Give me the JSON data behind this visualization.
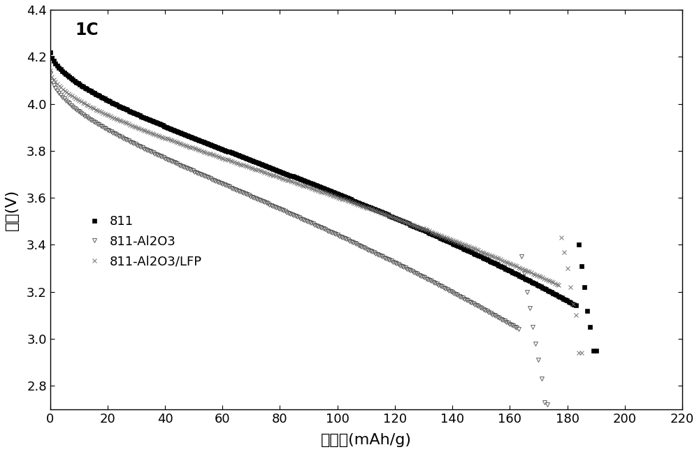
{
  "title_annotation": "1C",
  "xlabel": "比容量(mAh/g)",
  "ylabel": "电压(V)",
  "xlim": [
    0,
    220
  ],
  "ylim": [
    2.7,
    4.4
  ],
  "xticks": [
    0,
    20,
    40,
    60,
    80,
    100,
    120,
    140,
    160,
    180,
    200,
    220
  ],
  "yticks": [
    2.8,
    3.0,
    3.2,
    3.4,
    3.6,
    3.8,
    4.0,
    4.2,
    4.4
  ],
  "legend_labels": [
    "811",
    "811-Al2O3",
    "811-Al2O3/LFP"
  ],
  "series_colors": [
    "black",
    "#606060",
    "#707070"
  ],
  "series_markers": [
    "s",
    "v",
    "x"
  ],
  "series_markerfacecolors": [
    "black",
    "none",
    "none"
  ],
  "series_markeredgecolors": [
    "black",
    "#606060",
    "#707070"
  ],
  "marker_sizes": [
    4,
    5,
    5
  ]
}
